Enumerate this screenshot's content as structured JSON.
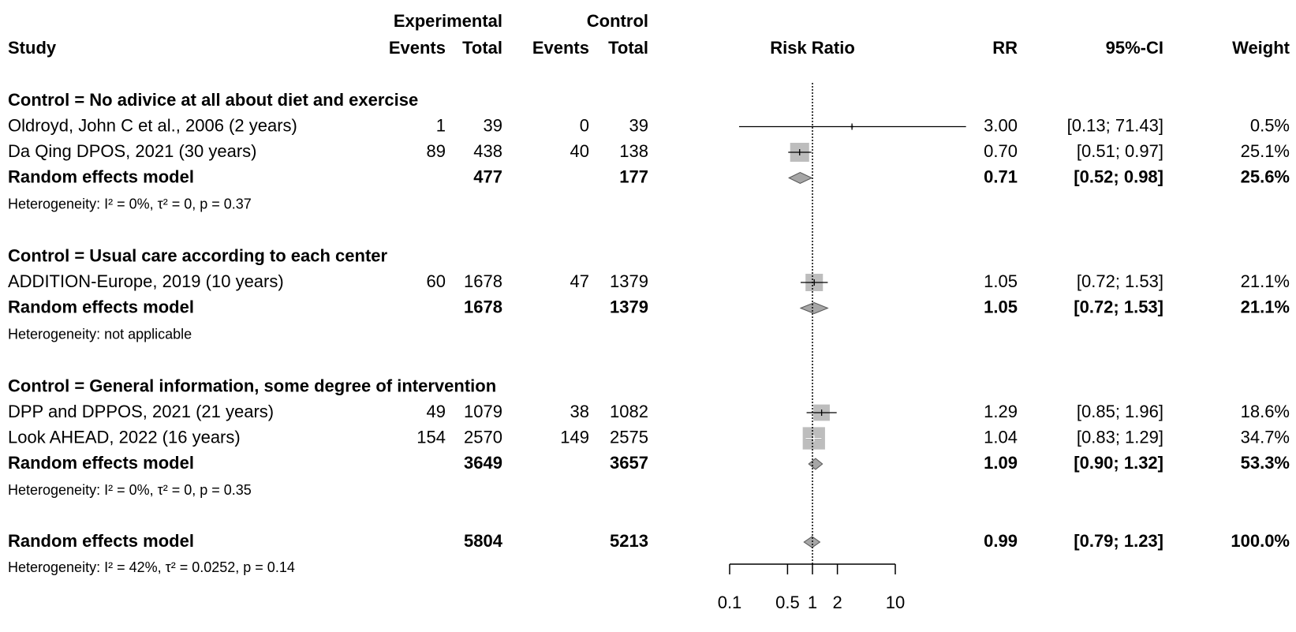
{
  "chart_data": {
    "type": "forest",
    "headers": {
      "study": "Study",
      "experimental": "Experimental",
      "control": "Control",
      "exp_events": "Events",
      "exp_total": "Total",
      "ctrl_events": "Events",
      "ctrl_total": "Total",
      "plot": "Risk Ratio",
      "rr": "RR",
      "ci": "95%-CI",
      "weight": "Weight"
    },
    "xlim": [
      0.1,
      10
    ],
    "xticks": [
      0.1,
      0.5,
      1,
      2,
      10
    ],
    "log_x": true,
    "reference_line": 1,
    "square_color": "#bdbdbd",
    "diamond_color": "#a6a6a6",
    "groups": [
      {
        "title": "Control = No adivice at all about diet and exercise",
        "studies": [
          {
            "name": "Oldroyd, John C et al., 2006 (2 years)",
            "exp_events": 1,
            "exp_total": 39,
            "ctrl_events": 0,
            "ctrl_total": 39,
            "rr": 3,
            "rr_label": "3.00",
            "ci": [
              0.13,
              71.43
            ],
            "ci_label": "[0.13; 71.43]",
            "weight": 0.5,
            "weight_label": "0.5%"
          },
          {
            "name": "Da Qing DPOS, 2021 (30 years)",
            "exp_events": 89,
            "exp_total": 438,
            "ctrl_events": 40,
            "ctrl_total": 138,
            "rr": 0.7,
            "rr_label": "0.70",
            "ci": [
              0.51,
              0.97
            ],
            "ci_label": "[0.51; 0.97]",
            "weight": 25.1,
            "weight_label": "25.1%"
          }
        ],
        "model": {
          "name": "Random effects model",
          "exp_total": 477,
          "ctrl_total": 177,
          "rr": 0.71,
          "rr_label": "0.71",
          "ci": [
            0.52,
            0.98
          ],
          "ci_label": "[0.52; 0.98]",
          "weight": 25.6,
          "weight_label": "25.6%"
        },
        "heterogeneity": "Heterogeneity: I² = 0%, τ² = 0, p = 0.37"
      },
      {
        "title": "Control = Usual care according to each center",
        "studies": [
          {
            "name": "ADDITION-Europe, 2019 (10 years)",
            "exp_events": 60,
            "exp_total": 1678,
            "ctrl_events": 47,
            "ctrl_total": 1379,
            "rr": 1.05,
            "rr_label": "1.05",
            "ci": [
              0.72,
              1.53
            ],
            "ci_label": "[0.72; 1.53]",
            "weight": 21.1,
            "weight_label": "21.1%"
          }
        ],
        "model": {
          "name": "Random effects model",
          "exp_total": 1678,
          "ctrl_total": 1379,
          "rr": 1.05,
          "rr_label": "1.05",
          "ci": [
            0.72,
            1.53
          ],
          "ci_label": "[0.72; 1.53]",
          "weight": 21.1,
          "weight_label": "21.1%"
        },
        "heterogeneity": "Heterogeneity: not applicable"
      },
      {
        "title": "Control = General information, some degree of intervention",
        "studies": [
          {
            "name": "DPP and DPPOS, 2021 (21 years)",
            "exp_events": 49,
            "exp_total": 1079,
            "ctrl_events": 38,
            "ctrl_total": 1082,
            "rr": 1.29,
            "rr_label": "1.29",
            "ci": [
              0.85,
              1.96
            ],
            "ci_label": "[0.85; 1.96]",
            "weight": 18.6,
            "weight_label": "18.6%"
          },
          {
            "name": "Look AHEAD, 2022 (16 years)",
            "exp_events": 154,
            "exp_total": 2570,
            "ctrl_events": 149,
            "ctrl_total": 2575,
            "rr": 1.04,
            "rr_label": "1.04",
            "ci": [
              0.83,
              1.29
            ],
            "ci_label": "[0.83; 1.29]",
            "weight": 34.7,
            "weight_label": "34.7%"
          }
        ],
        "model": {
          "name": "Random effects model",
          "exp_total": 3649,
          "ctrl_total": 3657,
          "rr": 1.09,
          "rr_label": "1.09",
          "ci": [
            0.9,
            1.32
          ],
          "ci_label": "[0.90; 1.32]",
          "weight": 53.3,
          "weight_label": "53.3%"
        },
        "heterogeneity": "Heterogeneity: I² = 0%, τ² = 0, p = 0.35"
      }
    ],
    "overall": {
      "name": "Random effects model",
      "exp_total": 5804,
      "ctrl_total": 5213,
      "rr": 0.99,
      "rr_label": "0.99",
      "ci": [
        0.79,
        1.23
      ],
      "ci_label": "[0.79; 1.23]",
      "weight": 100,
      "weight_label": "100.0%",
      "heterogeneity": "Heterogeneity: I² = 42%, τ² = 0.0252, p = 0.14"
    }
  }
}
